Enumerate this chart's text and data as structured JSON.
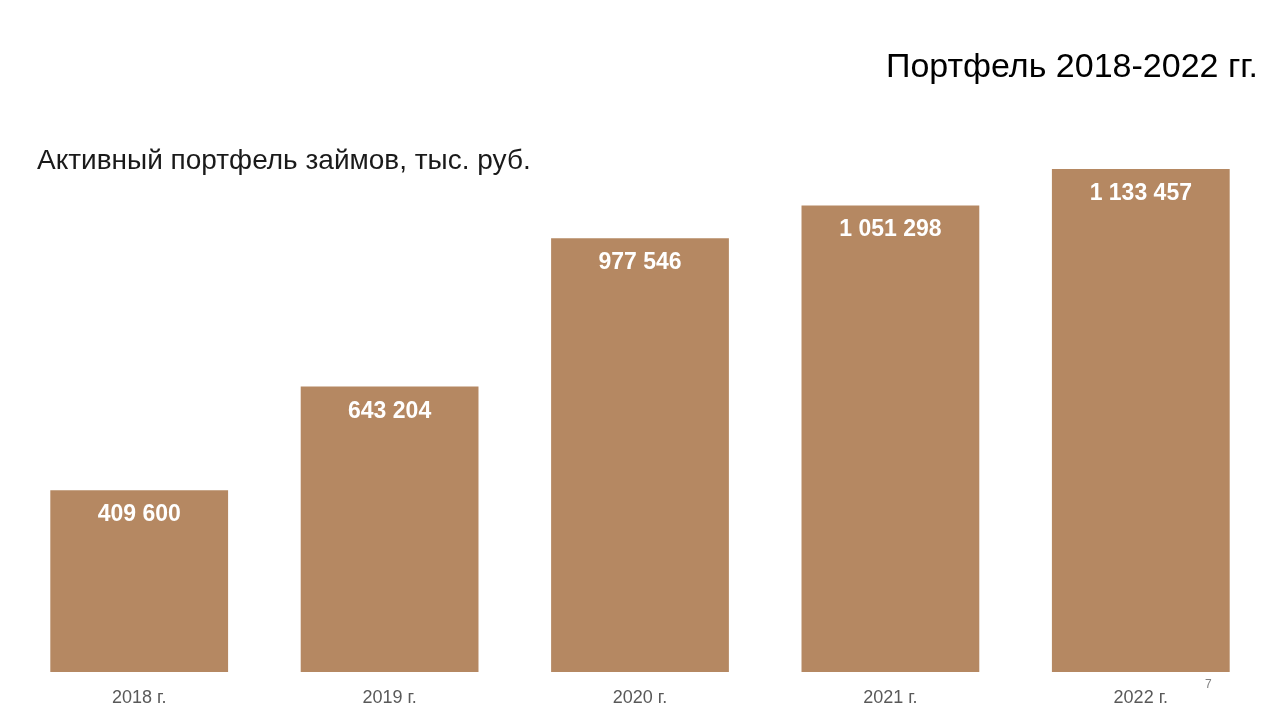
{
  "chart_data": {
    "type": "bar",
    "title": "Портфель 2018-2022 гг.",
    "subtitle": "Активный портфель займов, тыс. руб.",
    "categories": [
      "2018 г.",
      "2019 г.",
      "2020 г.",
      "2021 г.",
      "2022 г."
    ],
    "values": [
      409600,
      643204,
      977546,
      1051298,
      1133457
    ],
    "color": "#b58862",
    "value_labels": [
      "409 600",
      "643 204",
      "977 546",
      "1 051 298",
      "1 133 457"
    ],
    "tick_labels": "x",
    "grid": false,
    "annotations": [
      "7"
    ]
  }
}
